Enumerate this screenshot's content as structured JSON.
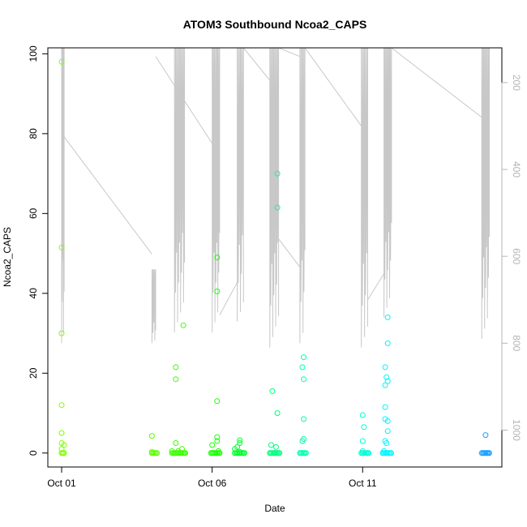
{
  "chart_data": {
    "type": "scatter",
    "title": "ATOM3 Southbound Ncoa2_CAPS",
    "xlabel": "Date",
    "ylabel": "Ncoa2_CAPS",
    "xlim": [
      "2011-09-30T13:00",
      "2011-10-15T15:00"
    ],
    "ylim": [
      -3.5,
      101.5
    ],
    "y_ticks": [
      0,
      20,
      40,
      60,
      80,
      100
    ],
    "x_ticks": [
      {
        "date": "2011-10-01",
        "label": "Oct 01"
      },
      {
        "date": "2011-10-06",
        "label": "Oct 06"
      },
      {
        "date": "2011-10-11",
        "label": "Oct 11"
      }
    ],
    "secondary_axis": {
      "reversed": true,
      "ylim": [
        1085,
        120
      ],
      "ticks": [
        200,
        400,
        600,
        800,
        1000
      ],
      "color": "#b4b4b4"
    },
    "grid": false,
    "points": [
      {
        "x": "2011-10-01T00:00",
        "y": 98,
        "color": "#7fff00"
      },
      {
        "x": "2011-10-01T00:00",
        "y": 51.5,
        "color": "#7fff00"
      },
      {
        "x": "2011-10-01T00:00",
        "y": 30,
        "color": "#7fff00"
      },
      {
        "x": "2011-10-01T00:00",
        "y": 12,
        "color": "#7fff00"
      },
      {
        "x": "2011-10-01T00:00",
        "y": 5,
        "color": "#7fff00"
      },
      {
        "x": "2011-10-01T00:00",
        "y": 2.5,
        "color": "#7fff00"
      },
      {
        "x": "2011-10-01T02:00",
        "y": 2,
        "color": "#7fff00"
      },
      {
        "x": "2011-10-01T00:00",
        "y": 1,
        "color": "#7fff00"
      },
      {
        "x": "2011-10-01T00:00",
        "y": 0,
        "color": "#7fff00"
      },
      {
        "x": "2011-10-01T02:00",
        "y": 0,
        "color": "#7fff00"
      },
      {
        "x": "2011-10-04T00:00",
        "y": 4.3,
        "color": "#5cff00"
      },
      {
        "x": "2011-10-04T00:00",
        "y": 0,
        "color": "#5cff00"
      },
      {
        "x": "2011-10-04T00:00",
        "y": 0.3,
        "color": "#5cff00"
      },
      {
        "x": "2011-10-04T04:00",
        "y": 0,
        "color": "#5cff00"
      },
      {
        "x": "2011-10-04T19:00",
        "y": 2.5,
        "color": "#3cff00"
      },
      {
        "x": "2011-10-04T19:00",
        "y": 21.5,
        "color": "#3cff00"
      },
      {
        "x": "2011-10-04T19:00",
        "y": 18.5,
        "color": "#3cff00"
      },
      {
        "x": "2011-10-05T01:00",
        "y": 32,
        "color": "#3cff00"
      },
      {
        "x": "2011-10-04T16:00",
        "y": 0.5,
        "color": "#3cff00"
      },
      {
        "x": "2011-10-04T18:00",
        "y": 0,
        "color": "#3cff00"
      },
      {
        "x": "2011-10-04T21:00",
        "y": 0.5,
        "color": "#3cff00"
      },
      {
        "x": "2011-10-05T00:00",
        "y": 1,
        "color": "#3cff00"
      },
      {
        "x": "2011-10-05T02:00",
        "y": 0,
        "color": "#3cff00"
      },
      {
        "x": "2011-10-06T04:00",
        "y": 49,
        "color": "#1aff00"
      },
      {
        "x": "2011-10-06T04:00",
        "y": 40.5,
        "color": "#1aff00"
      },
      {
        "x": "2011-10-06T04:00",
        "y": 13,
        "color": "#1aff00"
      },
      {
        "x": "2011-10-06T04:00",
        "y": 4,
        "color": "#1aff00"
      },
      {
        "x": "2011-10-06T04:00",
        "y": 3,
        "color": "#1aff00"
      },
      {
        "x": "2011-10-06T00:00",
        "y": 2,
        "color": "#1aff00"
      },
      {
        "x": "2011-10-06T00:00",
        "y": 0,
        "color": "#1aff00"
      },
      {
        "x": "2011-10-06T05:00",
        "y": 0.5,
        "color": "#1aff00"
      },
      {
        "x": "2011-10-06T06:00",
        "y": 0,
        "color": "#1aff00"
      },
      {
        "x": "2011-10-06T22:00",
        "y": 3.2,
        "color": "#00ff2c"
      },
      {
        "x": "2011-10-06T22:00",
        "y": 2.5,
        "color": "#00ff2c"
      },
      {
        "x": "2011-10-06T20:00",
        "y": 1.5,
        "color": "#00ff2c"
      },
      {
        "x": "2011-10-06T18:00",
        "y": 1,
        "color": "#00ff2c"
      },
      {
        "x": "2011-10-06T20:00",
        "y": 0,
        "color": "#00ff2c"
      },
      {
        "x": "2011-10-06T22:00",
        "y": 0.3,
        "color": "#00ff2c"
      },
      {
        "x": "2011-10-07T01:00",
        "y": 0,
        "color": "#00ff2c"
      },
      {
        "x": "2011-10-07T23:00",
        "y": 2,
        "color": "#00ff80"
      },
      {
        "x": "2011-10-08T03:00",
        "y": 1.5,
        "color": "#00ff80"
      },
      {
        "x": "2011-10-08T00:00",
        "y": 15.5,
        "color": "#00ff80"
      },
      {
        "x": "2011-10-08T04:00",
        "y": 10,
        "color": "#00ff80"
      },
      {
        "x": "2011-10-08T04:00",
        "y": 70,
        "color": "#00ffa6"
      },
      {
        "x": "2011-10-08T04:00",
        "y": 61.5,
        "color": "#00ffa6"
      },
      {
        "x": "2011-10-07T22:00",
        "y": 0,
        "color": "#00ff80"
      },
      {
        "x": "2011-10-08T02:00",
        "y": 0,
        "color": "#00ff80"
      },
      {
        "x": "2011-10-08T05:00",
        "y": 0,
        "color": "#00ff80"
      },
      {
        "x": "2011-10-09T01:00",
        "y": 24,
        "color": "#00ffb0"
      },
      {
        "x": "2011-10-09T00:00",
        "y": 21.5,
        "color": "#00ffb0"
      },
      {
        "x": "2011-10-09T01:00",
        "y": 18.5,
        "color": "#00ffb0"
      },
      {
        "x": "2011-10-09T01:00",
        "y": 8.5,
        "color": "#00ffb0"
      },
      {
        "x": "2011-10-09T01:00",
        "y": 3.5,
        "color": "#00ffb0"
      },
      {
        "x": "2011-10-09T00:00",
        "y": 3,
        "color": "#00ffb0"
      },
      {
        "x": "2011-10-08T22:00",
        "y": 0,
        "color": "#00ffb0"
      },
      {
        "x": "2011-10-09T02:00",
        "y": 0,
        "color": "#00ffb0"
      },
      {
        "x": "2011-10-11T00:00",
        "y": 9.5,
        "color": "#00ffd6"
      },
      {
        "x": "2011-10-11T01:00",
        "y": 6.5,
        "color": "#00ffd6"
      },
      {
        "x": "2011-10-11T00:00",
        "y": 3,
        "color": "#00ffd6"
      },
      {
        "x": "2011-10-11T00:00",
        "y": 0.5,
        "color": "#00ffd6"
      },
      {
        "x": "2011-10-10T23:00",
        "y": 0,
        "color": "#00ffd6"
      },
      {
        "x": "2011-10-11T04:00",
        "y": 0,
        "color": "#00ffd6"
      },
      {
        "x": "2011-10-11T20:00",
        "y": 34,
        "color": "#00f5ff"
      },
      {
        "x": "2011-10-11T20:00",
        "y": 27.5,
        "color": "#00f5ff"
      },
      {
        "x": "2011-10-11T18:00",
        "y": 21.5,
        "color": "#00f5ff"
      },
      {
        "x": "2011-10-11T19:00",
        "y": 19,
        "color": "#00f5ff"
      },
      {
        "x": "2011-10-11T20:00",
        "y": 18,
        "color": "#00f5ff"
      },
      {
        "x": "2011-10-11T18:00",
        "y": 17,
        "color": "#00f5ff"
      },
      {
        "x": "2011-10-11T18:00",
        "y": 11.5,
        "color": "#00f5ff"
      },
      {
        "x": "2011-10-11T18:00",
        "y": 8.5,
        "color": "#00f5ff"
      },
      {
        "x": "2011-10-11T20:00",
        "y": 8,
        "color": "#00f5ff"
      },
      {
        "x": "2011-10-11T20:00",
        "y": 5.5,
        "color": "#00f5ff"
      },
      {
        "x": "2011-10-11T18:00",
        "y": 3,
        "color": "#00f5ff"
      },
      {
        "x": "2011-10-11T19:00",
        "y": 2.5,
        "color": "#00f5ff"
      },
      {
        "x": "2011-10-11T17:00",
        "y": 0.5,
        "color": "#00f5ff"
      },
      {
        "x": "2011-10-11T16:00",
        "y": 0,
        "color": "#00f5ff"
      },
      {
        "x": "2011-10-11T22:00",
        "y": 0,
        "color": "#00f5ff"
      },
      {
        "x": "2011-10-15T02:00",
        "y": 4.5,
        "color": "#1a9fff"
      },
      {
        "x": "2011-10-15T00:00",
        "y": 0,
        "color": "#1a9fff"
      },
      {
        "x": "2011-10-15T03:00",
        "y": 0,
        "color": "#1a9fff"
      },
      {
        "x": "2011-10-15T05:00",
        "y": 0,
        "color": "#1a9fff"
      }
    ],
    "clusters": [
      {
        "x_start": "2011-10-01T00:00",
        "x_end": "2011-10-01T02:00",
        "y": 0,
        "color": "#7fff00"
      },
      {
        "x_start": "2011-10-04T00:00",
        "x_end": "2011-10-04T04:00",
        "y": 0,
        "color": "#5cff00"
      },
      {
        "x_start": "2011-10-04T16:00",
        "x_end": "2011-10-05T03:00",
        "y": 0,
        "color": "#3cff00"
      },
      {
        "x_start": "2011-10-05T23:00",
        "x_end": "2011-10-06T06:00",
        "y": 0,
        "color": "#1aff00"
      },
      {
        "x_start": "2011-10-06T18:00",
        "x_end": "2011-10-07T02:00",
        "y": 0,
        "color": "#00ff2c"
      },
      {
        "x_start": "2011-10-07T22:00",
        "x_end": "2011-10-08T06:00",
        "y": 0,
        "color": "#00ff80"
      },
      {
        "x_start": "2011-10-08T22:00",
        "x_end": "2011-10-09T03:00",
        "y": 0,
        "color": "#00ffb0"
      },
      {
        "x_start": "2011-10-10T23:00",
        "x_end": "2011-10-11T05:00",
        "y": 0,
        "color": "#00ffd6"
      },
      {
        "x_start": "2011-10-11T16:00",
        "x_end": "2011-10-11T23:00",
        "y": 0,
        "color": "#00f5ff"
      },
      {
        "x_start": "2011-10-14T23:00",
        "x_end": "2011-10-15T05:00",
        "y": 0,
        "color": "#1a9fff"
      }
    ],
    "depth_trace": {
      "color": "#c8c8c8",
      "bursts": [
        {
          "x_start": "2011-10-01T00:00",
          "x_end": "2011-10-01T02:00",
          "min": 120,
          "max": 800
        },
        {
          "x_start": "2011-10-04T00:00",
          "x_end": "2011-10-04T03:00",
          "min": 630,
          "max": 800
        },
        {
          "x_start": "2011-10-04T18:00",
          "x_end": "2011-10-05T02:00",
          "min": 120,
          "max": 775
        },
        {
          "x_start": "2011-10-06T00:00",
          "x_end": "2011-10-06T06:00",
          "min": 120,
          "max": 775
        },
        {
          "x_start": "2011-10-06T20:00",
          "x_end": "2011-10-07T01:00",
          "min": 120,
          "max": 750
        },
        {
          "x_start": "2011-10-07T22:00",
          "x_end": "2011-10-08T05:00",
          "min": 120,
          "max": 810
        },
        {
          "x_start": "2011-10-08T22:00",
          "x_end": "2011-10-09T02:00",
          "min": 120,
          "max": 800
        },
        {
          "x_start": "2011-10-10T23:00",
          "x_end": "2011-10-11T04:00",
          "min": 120,
          "max": 810
        },
        {
          "x_start": "2011-10-11T17:00",
          "x_end": "2011-10-11T23:00",
          "min": 120,
          "max": 740
        },
        {
          "x_start": "2011-10-14T23:00",
          "x_end": "2011-10-15T05:00",
          "min": 120,
          "max": 790
        }
      ],
      "transits": [
        {
          "x1": "2011-10-01T02:00",
          "y1": 325,
          "x2": "2011-10-04T00:00",
          "y2": 595
        },
        {
          "x1": "2011-10-04T03:00",
          "y1": 140,
          "x2": "2011-10-06T00:00",
          "y2": 340
        },
        {
          "x1": "2011-10-05T02:00",
          "y1": 120,
          "x2": "2011-10-06T01:00",
          "y2": 120
        },
        {
          "x1": "2011-10-06T06:00",
          "y1": 120,
          "x2": "2011-10-06T20:00",
          "y2": 120
        },
        {
          "x1": "2011-10-06T06:00",
          "y1": 735,
          "x2": "2011-10-06T20:00",
          "y2": 660
        },
        {
          "x1": "2011-10-07T01:00",
          "y1": 120,
          "x2": "2011-10-07T22:00",
          "y2": 195
        },
        {
          "x1": "2011-10-08T05:00",
          "y1": 120,
          "x2": "2011-10-08T22:00",
          "y2": 140
        },
        {
          "x1": "2011-10-08T05:00",
          "y1": 560,
          "x2": "2011-10-08T22:00",
          "y2": 625
        },
        {
          "x1": "2011-10-09T02:00",
          "y1": 120,
          "x2": "2011-10-10T23:00",
          "y2": 300
        },
        {
          "x1": "2011-10-11T04:00",
          "y1": 700,
          "x2": "2011-10-11T17:00",
          "y2": 640
        },
        {
          "x1": "2011-10-11T23:00",
          "y1": 120,
          "x2": "2011-10-14T23:00",
          "y2": 280
        }
      ]
    }
  }
}
